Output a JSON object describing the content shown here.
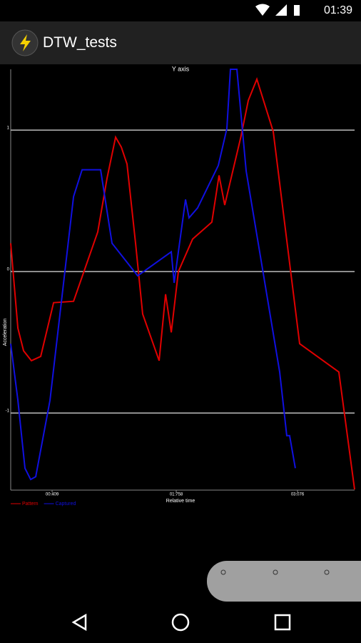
{
  "status_bar": {
    "time": "01:39"
  },
  "app_bar": {
    "title": "DTW_tests"
  },
  "chart_data": {
    "type": "line",
    "title": "Y axis",
    "x_label": "Relative time",
    "y_label": "Acceleration",
    "xlim": [
      -0.041,
      3.696
    ],
    "ylim": [
      -1.545,
      1.43
    ],
    "xticks": [
      {
        "value": 0.409,
        "label": "00:409"
      },
      {
        "value": 1.758,
        "label": "01:758"
      },
      {
        "value": 3.076,
        "label": "03:076"
      }
    ],
    "yticks": [
      -1,
      0,
      1
    ],
    "grid": true,
    "legend": "bottom-left",
    "series": [
      {
        "name": "Pattern",
        "color": "#e00000",
        "x": [
          -0.041,
          0.037,
          0.099,
          0.184,
          0.285,
          0.425,
          0.642,
          0.905,
          1.006,
          1.099,
          1.161,
          1.223,
          1.316,
          1.393,
          1.572,
          1.642,
          1.704,
          1.781,
          1.936,
          2.145,
          2.223,
          2.285,
          2.463,
          2.541,
          2.634,
          2.812,
          3.099,
          3.525,
          3.696
        ],
        "values": [
          0.2,
          -0.4,
          -0.56,
          -0.63,
          -0.6,
          -0.22,
          -0.21,
          0.28,
          0.66,
          0.95,
          0.88,
          0.76,
          0.2,
          -0.3,
          -0.63,
          -0.16,
          -0.43,
          0,
          0.23,
          0.35,
          0.68,
          0.47,
          0.96,
          1.21,
          1.36,
          0.99,
          -0.51,
          -0.71,
          -1.54
        ]
      },
      {
        "name": "Captured",
        "color": "#1010e0",
        "x": [
          -0.041,
          0.037,
          0.114,
          0.176,
          0.231,
          0.386,
          0.642,
          0.735,
          0.936,
          1.06,
          1.339,
          1.704,
          1.735,
          1.859,
          1.897,
          1.99,
          2.215,
          2.308,
          2.347,
          2.417,
          2.518,
          2.649,
          2.882,
          2.959,
          2.99,
          3.052
        ],
        "values": [
          -0.51,
          -0.91,
          -1.39,
          -1.47,
          -1.45,
          -0.91,
          0.53,
          0.72,
          0.72,
          0.2,
          -0.03,
          0.14,
          -0.08,
          0.51,
          0.38,
          0.45,
          0.75,
          1.01,
          1.43,
          1.43,
          0.71,
          0.2,
          -0.71,
          -1.16,
          -1.16,
          -1.39
        ]
      }
    ]
  }
}
